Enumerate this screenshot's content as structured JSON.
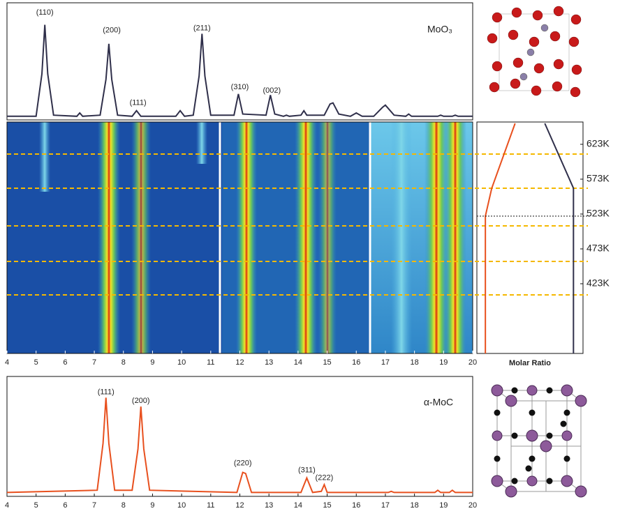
{
  "chart_data": [
    {
      "type": "line",
      "label": "MoO₃",
      "color": "#2f2f4a",
      "xlim": [
        4,
        20
      ],
      "ylim": [
        0,
        100
      ],
      "x": [
        4,
        5.0,
        5.2,
        5.3,
        5.4,
        5.6,
        6.4,
        6.5,
        6.6,
        7.2,
        7.4,
        7.5,
        7.6,
        7.8,
        8.3,
        8.45,
        8.6,
        9.8,
        9.95,
        10.1,
        10.4,
        10.6,
        10.7,
        10.8,
        11.0,
        11.8,
        11.95,
        12.1,
        12.9,
        13.05,
        13.2,
        13.5,
        13.6,
        13.7,
        14.1,
        14.2,
        14.3,
        14.9,
        15.1,
        15.2,
        15.4,
        15.8,
        16.0,
        16.2,
        16.6,
        16.9,
        17.0,
        17.3,
        17.7,
        17.8,
        17.9,
        18.8,
        18.9,
        19.0,
        19.3,
        19.4,
        19.5,
        20
      ],
      "values": [
        2,
        2,
        40,
        84,
        40,
        3,
        2,
        5,
        2,
        3,
        35,
        67,
        35,
        3,
        2,
        7,
        2,
        2,
        7,
        2,
        3,
        38,
        76,
        38,
        3,
        3,
        22,
        4,
        3,
        21,
        4,
        2,
        3,
        2,
        3,
        7,
        3,
        3,
        13,
        14,
        4,
        2,
        5,
        2,
        2,
        10,
        12,
        3,
        2,
        4,
        2,
        2,
        3,
        2,
        2,
        3,
        2,
        2
      ],
      "annotations": [
        {
          "text": "(110)",
          "x": 5.3,
          "y": 95
        },
        {
          "text": "(200)",
          "x": 7.6,
          "y": 79
        },
        {
          "text": "(111)",
          "x": 8.5,
          "y": 14
        },
        {
          "text": "(211)",
          "x": 10.7,
          "y": 81
        },
        {
          "text": "(310)",
          "x": 12.0,
          "y": 28
        },
        {
          "text": "(002)",
          "x": 13.1,
          "y": 25
        }
      ]
    },
    {
      "type": "heatmap",
      "xlim": [
        4,
        20
      ],
      "xticks": [
        4,
        5,
        6,
        7,
        8,
        9,
        10,
        11,
        12,
        13,
        14,
        15,
        16,
        17,
        18,
        19,
        20
      ],
      "ylim": [
        323,
        655
      ],
      "reference_lines": [
        609,
        560,
        506,
        455,
        407
      ],
      "reference_color": "#f5b800"
    },
    {
      "type": "line",
      "xlabel": "Molar Ratio",
      "xlim": [
        0,
        1
      ],
      "ylim": [
        323,
        655
      ],
      "yticks": [
        {
          "value": 623,
          "label": "623K"
        },
        {
          "value": 573,
          "label": "573K"
        },
        {
          "value": 523,
          "label": "523K"
        },
        {
          "value": 473,
          "label": "473K"
        },
        {
          "value": 423,
          "label": "423K"
        }
      ],
      "marker_line": 520,
      "series": [
        {
          "color": "#e8501e",
          "values": [
            0.08,
            0.08,
            0.14,
            0.36
          ],
          "y": [
            323,
            520,
            560,
            653
          ]
        },
        {
          "color": "#2f2f4a",
          "values": [
            0.91,
            0.91,
            0.64
          ],
          "y": [
            323,
            560,
            653
          ]
        }
      ]
    },
    {
      "type": "line",
      "label": "α-MoC",
      "color": "#e8501e",
      "xlim": [
        4,
        20
      ],
      "ylim": [
        0,
        100
      ],
      "xticks": [
        4,
        5,
        6,
        7,
        8,
        9,
        10,
        11,
        12,
        13,
        14,
        15,
        16,
        17,
        18,
        19,
        20
      ],
      "x": [
        4,
        7.1,
        7.3,
        7.4,
        7.5,
        7.7,
        8.3,
        8.5,
        8.6,
        8.7,
        8.9,
        11.9,
        12.1,
        12.2,
        12.4,
        14.1,
        14.3,
        14.5,
        14.8,
        14.9,
        15.0,
        17.1,
        17.2,
        17.3,
        18.7,
        18.8,
        18.9,
        19.2,
        19.3,
        19.4,
        20
      ],
      "values": [
        1,
        3,
        45,
        86,
        45,
        3,
        3,
        40,
        78,
        40,
        3,
        1,
        19,
        18,
        1,
        1,
        14,
        1,
        2,
        8,
        1,
        1,
        2,
        1,
        1,
        3,
        1,
        1,
        3,
        1,
        1
      ],
      "annotations": [
        {
          "text": "(111)",
          "x": 7.4,
          "y": 91
        },
        {
          "text": "(200)",
          "x": 8.6,
          "y": 83
        },
        {
          "text": "(220)",
          "x": 12.1,
          "y": 27
        },
        {
          "text": "(311)",
          "x": 14.3,
          "y": 21
        },
        {
          "text": "(222)",
          "x": 14.9,
          "y": 14
        }
      ]
    }
  ]
}
